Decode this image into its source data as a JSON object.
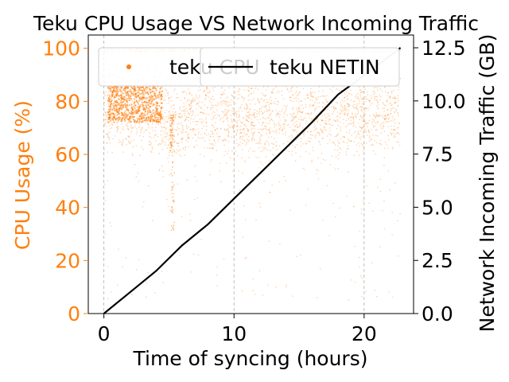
{
  "chart_data": {
    "type": "scatter",
    "title": "Teku CPU Usage VS Network Incoming Traffic",
    "xlabel": "Time of syncing (hours)",
    "ylabel_left": "CPU Usage (%)",
    "ylabel_right": "Network Incoming Traffic (GB)",
    "xlim": [
      -1.2,
      23.8
    ],
    "ylim_left": [
      0,
      105
    ],
    "ylim_right": [
      0,
      13.1
    ],
    "x_ticks": [
      0,
      10,
      20
    ],
    "y_left_ticks": [
      0,
      20,
      40,
      60,
      80,
      100
    ],
    "y_right_ticks": [
      0.0,
      2.5,
      5.0,
      7.5,
      10.0,
      12.5
    ],
    "x_grid": true,
    "y_grid": false,
    "legend_location": "top",
    "colors": {
      "cpu": "#ff7f0e",
      "netin": "#000000",
      "grid": "#b0b0b0"
    },
    "series": [
      {
        "name": "teku CPU",
        "kind": "scatter",
        "axis": "left",
        "color": "#ff7f0e",
        "typical_band": [
          {
            "x": 0,
            "y": 78
          },
          {
            "x": 1,
            "y": 77
          },
          {
            "x": 2,
            "y": 76
          },
          {
            "x": 3,
            "y": 77
          },
          {
            "x": 4,
            "y": 76
          },
          {
            "x": 5,
            "y": 72
          },
          {
            "x": 6,
            "y": 75
          },
          {
            "x": 8,
            "y": 75
          },
          {
            "x": 10,
            "y": 74
          },
          {
            "x": 11,
            "y": 73
          },
          {
            "x": 12,
            "y": 73
          },
          {
            "x": 14,
            "y": 74
          },
          {
            "x": 16,
            "y": 75
          },
          {
            "x": 18,
            "y": 75
          },
          {
            "x": 20,
            "y": 76
          },
          {
            "x": 22,
            "y": 76
          }
        ],
        "dense_cluster": {
          "x_range": [
            0.3,
            4.5
          ],
          "y_range": [
            72,
            86
          ]
        },
        "saturation_band": {
          "x_range": [
            13.5,
            22.8
          ],
          "y": 100
        },
        "dip_near": [
          {
            "x": 5.2,
            "y_min": 60
          },
          {
            "x": 5.3,
            "y_min": 30
          }
        ]
      },
      {
        "name": "teku NETIN",
        "kind": "line",
        "axis": "right",
        "color": "#000000",
        "points": [
          {
            "x": 0,
            "y": 0.0
          },
          {
            "x": 2,
            "y": 1.0
          },
          {
            "x": 4,
            "y": 2.0
          },
          {
            "x": 6,
            "y": 3.2
          },
          {
            "x": 8,
            "y": 4.2
          },
          {
            "x": 10,
            "y": 5.4
          },
          {
            "x": 12,
            "y": 6.6
          },
          {
            "x": 14,
            "y": 7.8
          },
          {
            "x": 16,
            "y": 9.0
          },
          {
            "x": 18,
            "y": 10.3
          },
          {
            "x": 20,
            "y": 11.2
          },
          {
            "x": 22.8,
            "y": 12.5
          }
        ]
      }
    ]
  }
}
